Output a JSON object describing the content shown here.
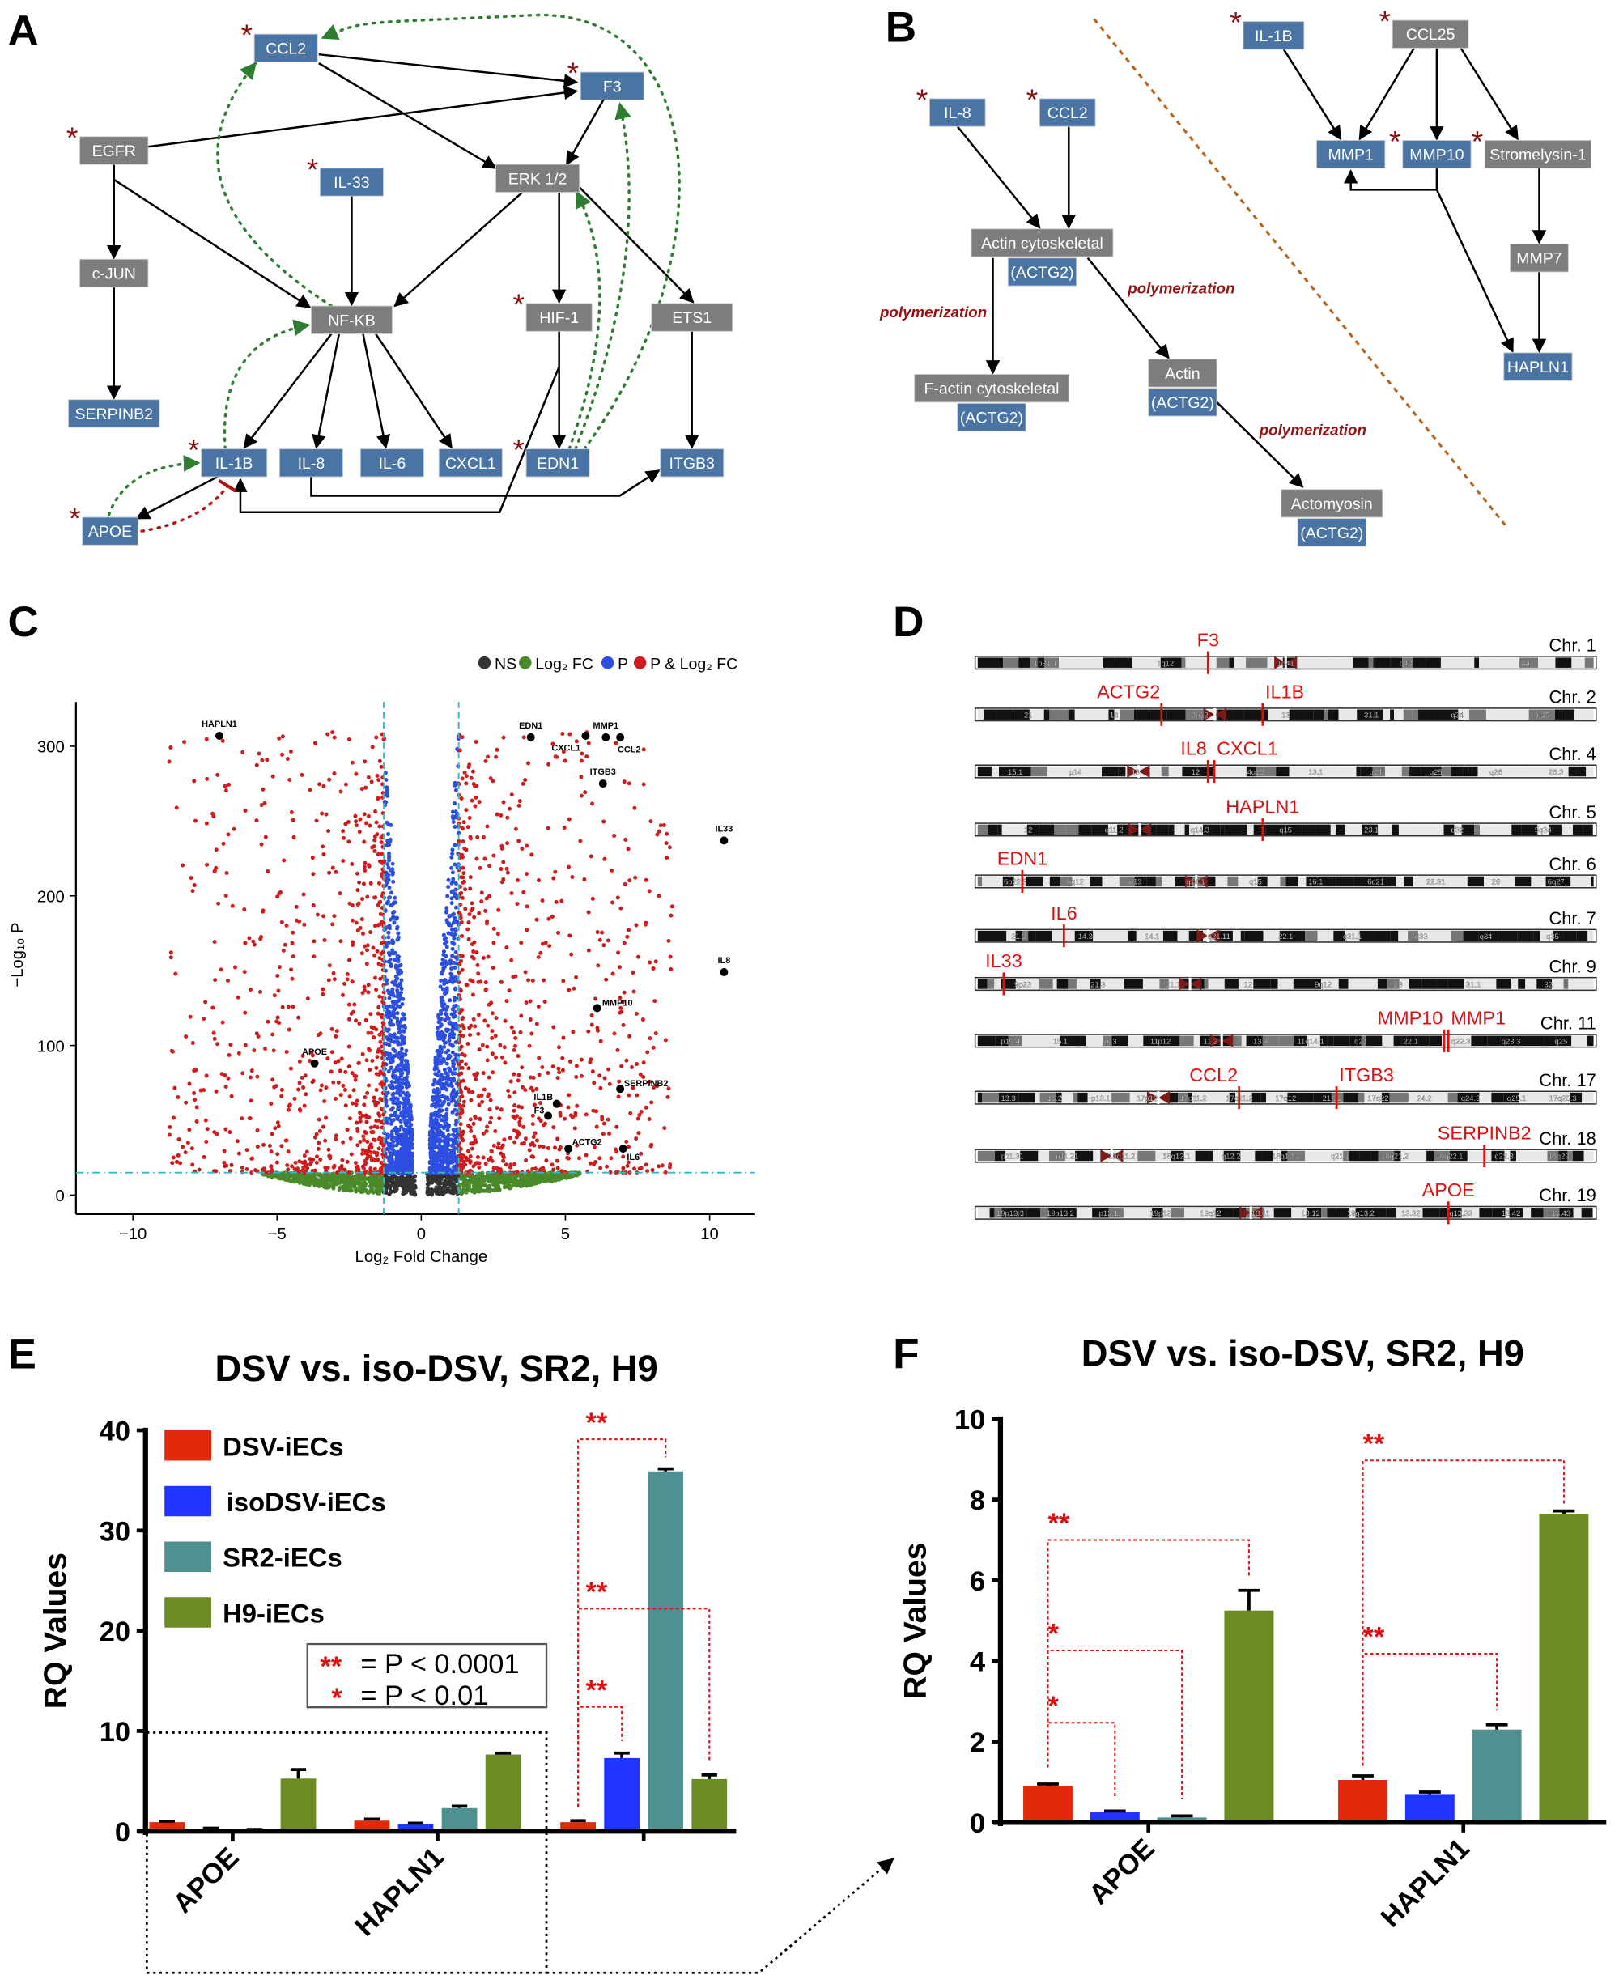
{
  "panel_labels": [
    "A",
    "B",
    "C",
    "D",
    "E",
    "F"
  ],
  "colors": {
    "gene_node": "#4a74a4",
    "other_node": "#7d7d7d",
    "significance_star": "#8b1010",
    "activation_arrow": "#2e7d32",
    "inhibition_arrow": "#b01818",
    "polymerization_text": "#9a1010",
    "divider": "#b5651d",
    "ns": "#333333",
    "log2fc": "#4a8a2a",
    "p": "#2d4fe0",
    "p_and_log2fc": "#d01c1c",
    "threshold": "#3bb5c4",
    "chromosome_marker": "#e01010",
    "dsv": "#e02a0a",
    "isodsv": "#1f35ff",
    "sr2": "#4f9090",
    "h9": "#6a8c22",
    "bracket": "#e01010"
  },
  "panel_a": {
    "nodes": [
      {
        "label": "CCL2",
        "type": "gene",
        "star": true
      },
      {
        "label": "F3",
        "type": "gene",
        "star": true
      },
      {
        "label": "EGFR",
        "type": "other",
        "star": true
      },
      {
        "label": "IL-33",
        "type": "gene",
        "star": true
      },
      {
        "label": "ERK 1/2",
        "type": "other",
        "star": false
      },
      {
        "label": "c-JUN",
        "type": "other",
        "star": false
      },
      {
        "label": "NF-KB",
        "type": "other",
        "star": false
      },
      {
        "label": "HIF-1",
        "type": "other",
        "star": true
      },
      {
        "label": "ETS1",
        "type": "other",
        "star": false
      },
      {
        "label": "SERPINB2",
        "type": "gene",
        "star": false
      },
      {
        "label": "IL-1B",
        "type": "gene",
        "star": true
      },
      {
        "label": "IL-8",
        "type": "gene",
        "star": false
      },
      {
        "label": "IL-6",
        "type": "gene",
        "star": false
      },
      {
        "label": "CXCL1",
        "type": "gene",
        "star": false
      },
      {
        "label": "EDN1",
        "type": "gene",
        "star": true
      },
      {
        "label": "ITGB3",
        "type": "gene",
        "star": false
      },
      {
        "label": "APOE",
        "type": "gene",
        "star": true
      }
    ]
  },
  "panel_b": {
    "nodes": [
      {
        "label": "IL-8",
        "type": "gene",
        "star": true
      },
      {
        "label": "CCL2",
        "type": "gene",
        "star": true
      },
      {
        "label": "IL-1B",
        "type": "gene",
        "star": true
      },
      {
        "label": "CCL25",
        "type": "other",
        "star": true
      },
      {
        "label": "MMP1",
        "type": "gene",
        "star": false
      },
      {
        "label": "MMP10",
        "type": "gene",
        "star": true
      },
      {
        "label": "Stromelysin-1",
        "type": "other",
        "star": true
      },
      {
        "label": "MMP7",
        "type": "other",
        "star": false
      },
      {
        "label": "HAPLN1",
        "type": "gene",
        "star": false
      },
      {
        "label": "Actin cytoskeletal",
        "type": "other",
        "star": false
      },
      {
        "label": "(ACTG2)",
        "type": "gene",
        "star": false
      },
      {
        "label": "F-actin cytoskeletal",
        "type": "other",
        "star": false
      },
      {
        "label": "(ACTG2)",
        "type": "gene",
        "star": false
      },
      {
        "label": "Actin",
        "type": "other",
        "star": false
      },
      {
        "label": "(ACTG2)",
        "type": "gene",
        "star": false
      },
      {
        "label": "Actomyosin",
        "type": "other",
        "star": false
      },
      {
        "label": "(ACTG2)",
        "type": "gene",
        "star": false
      }
    ],
    "edge_labels": [
      "polymerization",
      "polymerization",
      "polymerization"
    ]
  },
  "panel_d": {
    "chromosomes": [
      {
        "name": "Chr. 1",
        "genes": [
          "F3"
        ],
        "bands": [
          "1p31.1",
          "1q12",
          "1q41",
          "q43",
          "44"
        ]
      },
      {
        "name": "Chr. 2",
        "genes": [
          "ACTG2",
          "IL1B"
        ],
        "bands": [
          "21",
          "14",
          "2p12",
          "13",
          "31.1",
          "q34",
          "q35"
        ]
      },
      {
        "name": "Chr. 4",
        "genes": [
          "IL8",
          "CXCL1"
        ],
        "bands": [
          "15.1",
          "p14",
          "13",
          "12",
          "4q12",
          "13.1",
          "q24",
          "q25",
          "q26",
          "28.3"
        ]
      },
      {
        "name": "Chr. 5",
        "genes": [
          "HAPLN1"
        ],
        "bands": [
          "12",
          "q11.2",
          "q14.3",
          "q15",
          "23.1",
          "q32",
          "5q34"
        ]
      },
      {
        "name": "Chr. 6",
        "genes": [
          "EDN1"
        ],
        "bands": [
          "6p22.3",
          "6q12",
          "q13",
          "q14.1",
          "q15",
          "16.1",
          "6q21",
          "22.31",
          "26",
          "6q27"
        ]
      },
      {
        "name": "Chr. 7",
        "genes": [
          "IL6"
        ],
        "bands": [
          "21.3",
          "14.3",
          "14.1",
          "q21.11",
          "22.1",
          "q31.1",
          "7q33",
          "q34",
          "q35"
        ]
      },
      {
        "name": "Chr. 9",
        "genes": [
          "IL33"
        ],
        "bands": [
          "9p23",
          "21.3",
          "21.1",
          "12",
          "9q12",
          "13",
          "31.1",
          "32"
        ]
      },
      {
        "name": "Chr. 11",
        "genes": [
          "MMP10",
          "MMP1"
        ],
        "bands": [
          "p15.4",
          "15.1",
          "p13",
          "11p12",
          "11.2",
          "13.4",
          "11q14.1",
          "q21",
          "22.1",
          "q22.3",
          "q23.3",
          "q25"
        ]
      },
      {
        "name": "Chr. 17",
        "genes": [
          "CCL2",
          "ITGB3"
        ],
        "bands": [
          "13.3",
          "13.2",
          "p13.1",
          "17p12",
          "17p11.2",
          "17q11.2",
          "17q12",
          "21.31",
          "17q22",
          "24.2",
          "q24.3",
          "q25.1",
          "17q25.3"
        ]
      },
      {
        "name": "Chr. 18",
        "genes": [
          "SERPINB2"
        ],
        "bands": [
          "p11.31",
          "p11.21",
          "18q11.2",
          "18q12.1",
          "q12.2",
          "18q12.3",
          "q21.1",
          "18q21.2",
          "18q22.1",
          "q22.3",
          "18q23"
        ]
      },
      {
        "name": "Chr. 19",
        "genes": [
          "APOE"
        ],
        "bands": [
          "19p13.3",
          "19p13.2",
          "p13.11",
          "19p12",
          "19q12",
          "13.11",
          "13.12",
          "19q13.2",
          "13.32",
          "q13.33",
          "13.42",
          "13.43"
        ]
      }
    ]
  },
  "chart_data": [
    {
      "panel": "C",
      "type": "scatter",
      "xlabel": "Log₂ Fold Change",
      "ylabel": "−Log₁₀ P",
      "xlim": [
        -12,
        11.6
      ],
      "ylim": [
        -12,
        330
      ],
      "xticks": [
        -10,
        -5,
        0,
        5,
        10
      ],
      "yticks": [
        0,
        100,
        200,
        300
      ],
      "thresholds": {
        "log2fc": 1.3,
        "neg_log10_p": 15
      },
      "legend": {
        "placement": "top-right",
        "entries": [
          "NS",
          "Log₂ FC",
          "P",
          "P & Log₂ FC"
        ]
      },
      "labeled_points": [
        {
          "label": "HAPLN1",
          "x": -7.0,
          "y": 307
        },
        {
          "label": "EDN1",
          "x": 3.8,
          "y": 306
        },
        {
          "label": "CXCL1",
          "x": 5.7,
          "y": 307
        },
        {
          "label": "MMP1",
          "x": 6.4,
          "y": 306
        },
        {
          "label": "CCL2",
          "x": 6.9,
          "y": 306
        },
        {
          "label": "ITGB3",
          "x": 6.3,
          "y": 275
        },
        {
          "label": "IL33",
          "x": 10.5,
          "y": 237
        },
        {
          "label": "IL8",
          "x": 10.5,
          "y": 149
        },
        {
          "label": "MMP10",
          "x": 6.1,
          "y": 125
        },
        {
          "label": "APOE",
          "x": -3.7,
          "y": 88
        },
        {
          "label": "SERPINB2",
          "x": 6.9,
          "y": 71
        },
        {
          "label": "IL1B",
          "x": 4.7,
          "y": 61
        },
        {
          "label": "F3",
          "x": 4.4,
          "y": 53
        },
        {
          "label": "ACTG2",
          "x": 5.1,
          "y": 31
        },
        {
          "label": "IL6",
          "x": 7.0,
          "y": 31
        }
      ]
    },
    {
      "panel": "E",
      "type": "bar",
      "title": "DSV vs. iso-DSV, SR2, H9",
      "ylabel": "RQ Values",
      "ylim": [
        0,
        40
      ],
      "yticks": [
        0,
        10,
        20,
        30,
        40
      ],
      "categories": [
        "APOE",
        "HAPLN1",
        ""
      ],
      "series": [
        {
          "name": "DSV-iECs",
          "values": [
            0.9,
            1.05,
            0.9
          ],
          "errors": [
            0.1,
            0.15,
            0.15
          ]
        },
        {
          "name": "isoDSV-iECs",
          "values": [
            0.25,
            0.7,
            7.3
          ],
          "errors": [
            0.05,
            0.1,
            0.5
          ]
        },
        {
          "name": "SR2-iECs",
          "values": [
            0.12,
            2.3,
            35.9
          ],
          "errors": [
            0.05,
            0.2,
            0.25
          ]
        },
        {
          "name": "H9-iECs",
          "values": [
            5.25,
            7.65,
            5.2
          ],
          "errors": [
            0.9,
            0.15,
            0.4
          ]
        }
      ],
      "significance_legend": [
        {
          "marker": "**",
          "text": "= P < 0.0001"
        },
        {
          "marker": "*",
          "text": "= P < 0.01"
        }
      ],
      "significance": [
        {
          "category_index": 2,
          "compare": [
            "DSV-iECs",
            "SR2-iECs"
          ],
          "label": "**"
        },
        {
          "category_index": 2,
          "compare": [
            "DSV-iECs",
            "H9-iECs"
          ],
          "label": "**"
        },
        {
          "category_index": 2,
          "compare": [
            "DSV-iECs",
            "isoDSV-iECs"
          ],
          "label": "**"
        }
      ]
    },
    {
      "panel": "F",
      "type": "bar",
      "title": "DSV vs. iso-DSV, SR2, H9",
      "ylabel": "RQ Values",
      "ylim": [
        0,
        10
      ],
      "yticks": [
        0,
        2,
        4,
        6,
        8,
        10
      ],
      "categories": [
        "APOE",
        "HAPLN1"
      ],
      "series": [
        {
          "name": "DSV-iECs",
          "values": [
            0.9,
            1.05
          ],
          "errors": [
            0.05,
            0.1
          ]
        },
        {
          "name": "isoDSV-iECs",
          "values": [
            0.25,
            0.7
          ],
          "errors": [
            0.03,
            0.05
          ]
        },
        {
          "name": "SR2-iECs",
          "values": [
            0.12,
            2.3
          ],
          "errors": [
            0.04,
            0.12
          ]
        },
        {
          "name": "H9-iECs",
          "values": [
            5.25,
            7.65
          ],
          "errors": [
            0.5,
            0.07
          ]
        }
      ],
      "significance": [
        {
          "category_index": 0,
          "compare": [
            "DSV-iECs",
            "H9-iECs"
          ],
          "label": "**"
        },
        {
          "category_index": 0,
          "compare": [
            "DSV-iECs",
            "SR2-iECs"
          ],
          "label": "*"
        },
        {
          "category_index": 0,
          "compare": [
            "DSV-iECs",
            "isoDSV-iECs"
          ],
          "label": "*"
        },
        {
          "category_index": 1,
          "compare": [
            "DSV-iECs",
            "H9-iECs"
          ],
          "label": "**"
        },
        {
          "category_index": 1,
          "compare": [
            "DSV-iECs",
            "SR2-iECs"
          ],
          "label": "**"
        }
      ]
    }
  ]
}
